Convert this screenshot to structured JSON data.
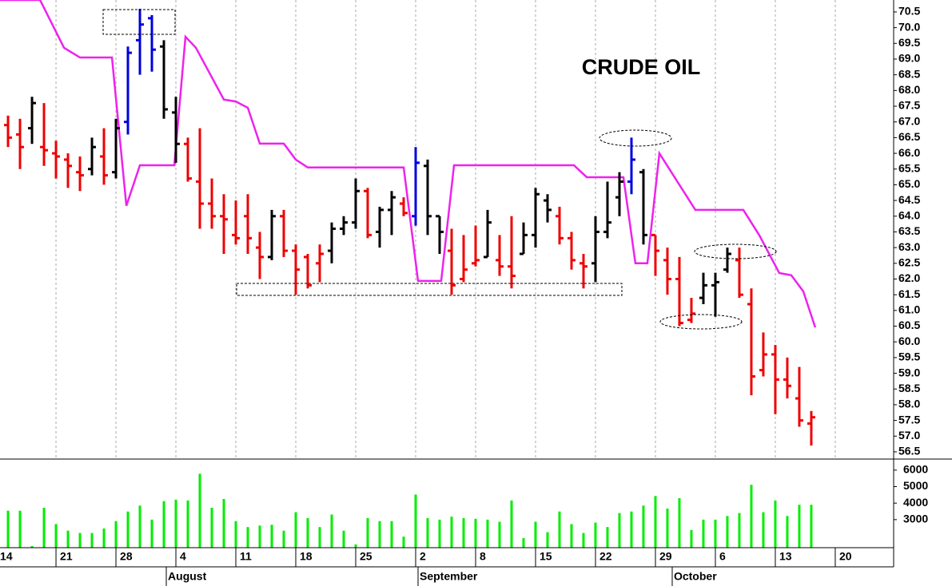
{
  "chart_data": [
    {
      "type": "ohlc",
      "title": "CRUDE OIL",
      "xlim": [
        0.33,
        74.87
      ],
      "xticks": [
        0,
        5,
        10,
        15,
        20,
        25,
        30,
        35,
        40,
        45,
        50,
        55,
        60,
        65,
        70
      ],
      "grid": true,
      "ylim": [
        56.27,
        70.88
      ],
      "yticks": [
        {
          "value": 56.5,
          "label": "56.5"
        },
        {
          "value": 57,
          "label": "57.0"
        },
        57.5,
        {
          "value": 58,
          "label": "58.0"
        },
        58.5,
        {
          "value": 59,
          "label": "59.0"
        },
        59.5,
        {
          "value": 60,
          "label": "60.0"
        },
        60.5,
        {
          "value": 61,
          "label": "61.0"
        },
        61.5,
        {
          "value": 62,
          "label": "62.0"
        },
        62.5,
        {
          "value": 63,
          "label": "63.0"
        },
        63.5,
        {
          "value": 64,
          "label": "64.0"
        },
        64.5,
        {
          "value": 65,
          "label": "65.0"
        },
        65.5,
        {
          "value": 66,
          "label": "66.0"
        },
        66.5,
        {
          "value": 67,
          "label": "67.0"
        },
        67.5,
        {
          "value": 68,
          "label": "68.0"
        },
        68.5,
        {
          "value": 69,
          "label": "69.0"
        },
        69.5,
        {
          "value": 70,
          "label": "70.0"
        },
        70.5
      ],
      "series": [
        {
          "color": "#0000dd",
          "x": [
            11,
            12,
            13,
            35,
            53
          ],
          "open": [
            67.0,
            69.6,
            70.3,
            64.0,
            65.1
          ],
          "high": [
            69.4,
            70.6,
            70.4,
            66.2,
            66.5
          ],
          "low": [
            66.6,
            68.5,
            68.6,
            63.7,
            64.7
          ],
          "close": [
            69.2,
            70.1,
            69.3,
            65.7,
            65.8
          ]
        },
        {
          "color": "#000000",
          "x": [
            3,
            8,
            10,
            14,
            15,
            23,
            28,
            29,
            30,
            32,
            33,
            36,
            37,
            41,
            44,
            45,
            46,
            50,
            51,
            52,
            54,
            59,
            60,
            61
          ],
          "open": [
            66.8,
            65.5,
            65.4,
            69.4,
            67.3,
            62.7,
            62.9,
            63.6,
            63.8,
            63.5,
            64.2,
            65.6,
            64.0,
            62.7,
            62.8,
            63.4,
            64.5,
            62.5,
            63.5,
            64.6,
            65.4,
            61.4,
            61.8,
            62.3
          ],
          "high": [
            67.8,
            66.5,
            67.1,
            69.6,
            67.8,
            64.2,
            63.8,
            64.0,
            65.2,
            64.3,
            64.8,
            65.8,
            64.0,
            64.2,
            63.8,
            64.9,
            64.7,
            64.0,
            65.1,
            65.4,
            65.5,
            62.2,
            62.2,
            63.0
          ],
          "low": [
            66.3,
            65.3,
            65.2,
            67.1,
            65.7,
            62.6,
            62.5,
            63.4,
            63.6,
            63.0,
            63.4,
            63.4,
            62.8,
            62.7,
            62.8,
            63.0,
            63.8,
            61.9,
            63.3,
            64.0,
            63.1,
            61.2,
            60.8,
            62.2
          ],
          "close": [
            67.6,
            66.2,
            66.8,
            67.4,
            66.3,
            64.0,
            63.6,
            63.8,
            64.8,
            64.2,
            64.6,
            64.0,
            63.5,
            63.8,
            63.4,
            64.7,
            64.2,
            63.5,
            63.8,
            65.1,
            63.4,
            61.8,
            61.9,
            62.8
          ]
        },
        {
          "color": "#ee0000",
          "x": [
            1,
            2,
            4,
            5,
            6,
            7,
            9,
            16,
            17,
            18,
            19,
            20,
            21,
            22,
            24,
            25,
            26,
            27,
            31,
            34,
            38,
            39,
            40,
            42,
            43,
            47,
            48,
            49,
            55,
            56,
            57,
            58,
            62,
            63,
            64,
            65,
            66,
            67,
            68
          ],
          "open": [
            66.9,
            66.6,
            66.2,
            66.0,
            65.8,
            65.4,
            65.9,
            66.3,
            65.1,
            64.4,
            64.0,
            63.4,
            64.0,
            63.0,
            64.0,
            62.9,
            62.7,
            62.5,
            64.8,
            64.4,
            62.9,
            62.0,
            62.5,
            62.6,
            62.4,
            64.0,
            63.3,
            62.5,
            63.4,
            62.6,
            62.0,
            60.7,
            62.6,
            61.2,
            59.1,
            59.6,
            58.8,
            58.2,
            57.4
          ],
          "high": [
            67.2,
            67.1,
            67.6,
            66.4,
            66.0,
            65.9,
            66.8,
            66.5,
            66.8,
            65.2,
            64.7,
            64.5,
            64.7,
            63.5,
            64.2,
            63.1,
            62.8,
            63.1,
            64.9,
            64.6,
            63.6,
            63.4,
            63.7,
            63.4,
            64.0,
            64.3,
            63.5,
            62.8,
            63.4,
            63.0,
            62.7,
            61.4,
            63.0,
            61.7,
            60.3,
            59.9,
            59.5,
            59.2,
            57.8
          ],
          "low": [
            66.2,
            65.5,
            65.6,
            65.2,
            64.9,
            64.8,
            65.0,
            65.1,
            63.6,
            63.6,
            62.8,
            63.1,
            62.8,
            62.0,
            62.7,
            61.5,
            61.7,
            61.9,
            63.3,
            64.0,
            61.5,
            61.9,
            62.4,
            62.1,
            61.7,
            63.1,
            62.3,
            61.7,
            62.1,
            61.5,
            60.5,
            60.6,
            61.4,
            58.3,
            58.9,
            57.7,
            58.2,
            57.3,
            56.7
          ],
          "close": [
            66.5,
            66.2,
            66.1,
            65.9,
            65.6,
            65.3,
            65.3,
            65.2,
            64.4,
            64.0,
            63.9,
            63.3,
            63.3,
            62.7,
            62.9,
            62.3,
            61.8,
            62.8,
            63.4,
            64.1,
            61.8,
            62.3,
            62.6,
            62.4,
            62.1,
            63.3,
            62.6,
            62.4,
            62.9,
            62.0,
            60.6,
            60.9,
            61.5,
            58.9,
            59.6,
            58.8,
            58.6,
            57.5,
            57.6
          ]
        }
      ],
      "overlay": {
        "color": "#ee22ee",
        "x": [
          0.33,
          3.67,
          5.67,
          7,
          9.67,
          10.87,
          12,
          14.87,
          15.8,
          16.67,
          19,
          20,
          21,
          22,
          24,
          25,
          26,
          34,
          35.2,
          37.13,
          38.2,
          48.2,
          49.27,
          52.33,
          53.33,
          54.33,
          55.33,
          58.33,
          62.33,
          63.67,
          65.33,
          66.33,
          67.33,
          68.33
        ],
        "values": [
          70.88,
          70.88,
          69.36,
          69.05,
          69.05,
          64.33,
          65.62,
          65.62,
          69.71,
          69.36,
          67.71,
          67.65,
          67.45,
          66.31,
          66.31,
          65.8,
          65.55,
          65.55,
          61.94,
          61.94,
          65.62,
          65.62,
          65.24,
          65.24,
          62.5,
          62.5,
          66.0,
          64.2,
          64.2,
          63.39,
          62.19,
          62.12,
          61.61,
          60.46
        ]
      }
    },
    {
      "type": "bar",
      "color": "#00ee00",
      "xlim": [
        0.33,
        74.87
      ],
      "xticks": [
        {
          "value": 0,
          "label": "14"
        },
        {
          "value": 5,
          "label": "21"
        },
        {
          "value": 10,
          "label": "28"
        },
        {
          "value": 15,
          "label": "4"
        },
        {
          "value": 20,
          "label": "11"
        },
        {
          "value": 25,
          "label": "18"
        },
        {
          "value": 30,
          "label": "25"
        },
        {
          "value": 35,
          "label": "2"
        },
        {
          "value": 40,
          "label": "8"
        },
        {
          "value": 45,
          "label": "15"
        },
        {
          "value": 50,
          "label": "22"
        },
        {
          "value": 55,
          "label": "29"
        },
        {
          "value": 60,
          "label": "6"
        },
        {
          "value": 65,
          "label": "13"
        },
        {
          "value": 70,
          "label": "20"
        }
      ],
      "month_ticks": [
        {
          "value": 14.2,
          "label": "August"
        },
        {
          "value": 35.2,
          "label": "September"
        },
        {
          "value": 56.4,
          "label": "October"
        }
      ],
      "ylim": [
        1300,
        6670
      ],
      "yticks": [
        3000,
        4000,
        5000,
        6000
      ],
      "x": [
        1,
        2,
        3,
        4,
        5,
        6,
        7,
        8,
        9,
        10,
        11,
        12,
        13,
        14,
        15,
        16,
        17,
        18,
        19,
        20,
        21,
        22,
        23,
        24,
        25,
        26,
        27,
        28,
        29,
        30,
        31,
        32,
        33,
        34,
        35,
        36,
        37,
        38,
        39,
        40,
        41,
        42,
        43,
        44,
        45,
        46,
        47,
        48,
        49,
        50,
        51,
        52,
        53,
        54,
        55,
        56,
        57,
        58,
        59,
        60,
        61,
        62,
        63,
        64,
        65,
        66,
        67,
        68
      ],
      "values": [
        3540,
        3540,
        1400,
        3720,
        2730,
        2330,
        2190,
        2190,
        2460,
        2910,
        3490,
        3850,
        3000,
        4120,
        4210,
        4160,
        5780,
        3720,
        4250,
        2910,
        2550,
        2640,
        2690,
        2330,
        3450,
        3090,
        2550,
        3310,
        2330,
        1500,
        3090,
        2910,
        2910,
        1970,
        4520,
        3090,
        3000,
        3180,
        3090,
        3050,
        3000,
        2870,
        4160,
        1880,
        2870,
        2240,
        3490,
        2730,
        2190,
        2820,
        2550,
        3400,
        3490,
        3850,
        4430,
        3670,
        4300,
        2370,
        3000,
        3000,
        3220,
        3400,
        5110,
        3450,
        4160,
        3220,
        3900,
        3900
      ]
    }
  ]
}
